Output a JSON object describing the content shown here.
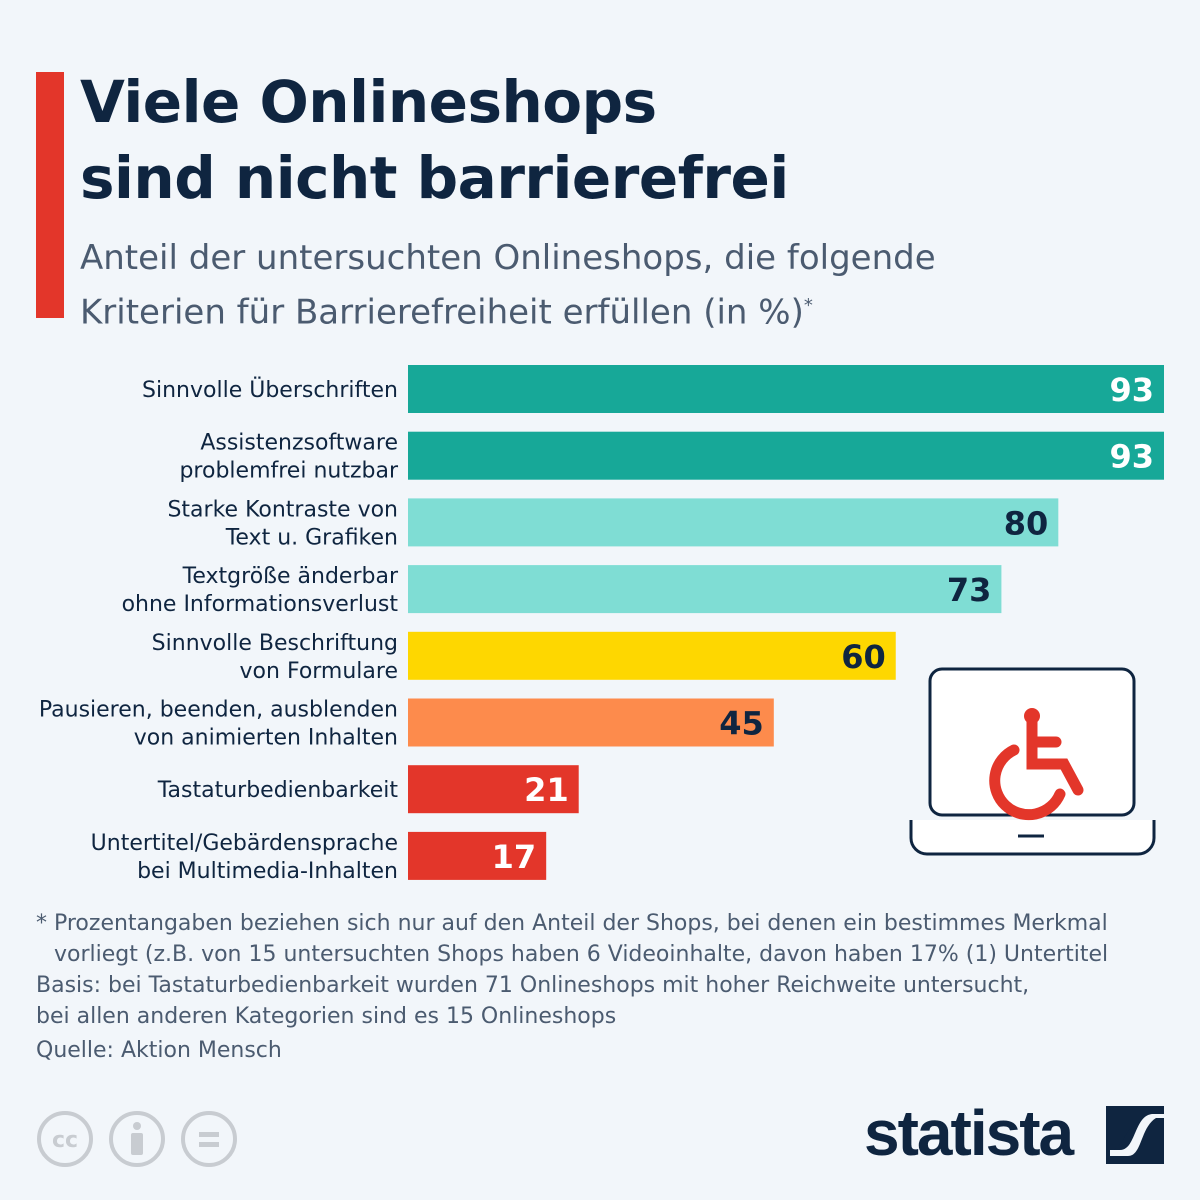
{
  "title": [
    "Viele Onlineshops",
    "sind nicht barrierefrei"
  ],
  "subtitle": [
    "Anteil der untersuchten Onlineshops, die folgende",
    "Kriterien für Barrierefreiheit erfüllen (in %)"
  ],
  "subtitle_marker": "*",
  "chart_data": {
    "type": "bar",
    "orientation": "horizontal",
    "categories": [
      [
        "Sinnvolle Überschriften"
      ],
      [
        "Assistenzsoftware",
        "problemfrei nutzbar"
      ],
      [
        "Starke Kontraste von",
        "Text u. Grafiken"
      ],
      [
        "Textgröße änderbar",
        "ohne Informationsverlust"
      ],
      [
        "Sinnvolle Beschriftung",
        "von Formulare"
      ],
      [
        "Pausieren, beenden, ausblenden",
        "von animierten Inhalten"
      ],
      [
        "Tastaturbedienbarkeit"
      ],
      [
        "Untertitel/Gebärdensprache",
        "bei Multimedia-Inhalten"
      ]
    ],
    "values": [
      93,
      93,
      80,
      73,
      60,
      45,
      21,
      17
    ],
    "colors": [
      "#17a898",
      "#17a898",
      "#7fddd4",
      "#7fddd4",
      "#fed700",
      "#fd8b4c",
      "#e3362a",
      "#e3362a"
    ],
    "label_colors": [
      "#ffffff",
      "#ffffff",
      "#0f2540",
      "#0f2540",
      "#0f2540",
      "#0f2540",
      "#ffffff",
      "#ffffff"
    ],
    "xlim": [
      0,
      93
    ],
    "grid": false,
    "data_labels": true
  },
  "footnote": [
    "* Prozentangaben beziehen sich nur auf den Anteil der Shops, bei denen ein bestimmes Merkmal",
    "vorliegt (z.B. von 15 untersuchten Shops haben 6 Videoinhalte, davon haben 17% (1) Untertitel",
    "Basis: bei Tastaturbedienbarkeit wurden 71 Onlineshops mit hoher Reichweite untersucht,",
    "bei allen anderen Kategorien sind es 15 Onlineshops"
  ],
  "source": "Quelle: Aktion Mensch",
  "icons": {
    "illustration": "laptop-wheelchair-icon",
    "license": [
      "cc-icon",
      "by-icon",
      "nd-icon"
    ]
  },
  "logo": "statista",
  "accent_color": "#e3362a"
}
